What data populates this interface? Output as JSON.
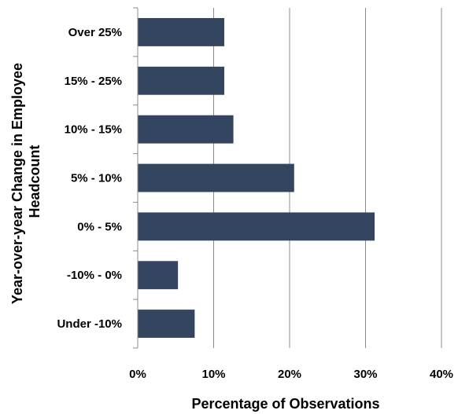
{
  "chart_data": {
    "type": "bar",
    "orientation": "horizontal",
    "categories": [
      "Over 25%",
      "15% - 25%",
      "10% - 15%",
      "5% - 10%",
      "0% - 5%",
      "-10% - 0%",
      "Under -10%"
    ],
    "values": [
      11.4,
      11.4,
      12.6,
      20.6,
      31.2,
      5.3,
      7.5
    ],
    "value_unit": "%",
    "xlim": [
      0,
      40
    ],
    "xticks": [
      0,
      10,
      20,
      30,
      40
    ],
    "xtick_labels": [
      "0%",
      "10%",
      "20%",
      "30%",
      "40%"
    ],
    "xlabel": "Percentage of Observations",
    "ylabel_lines": [
      "Year-over-year Change in Employee",
      "Headcount"
    ],
    "title": "",
    "grid": "vertical",
    "legend": "none",
    "colors": {
      "bar": "#34465f",
      "grid": "#8c8c8c",
      "axis": "#8c8c8c",
      "background": "#ffffff"
    }
  }
}
